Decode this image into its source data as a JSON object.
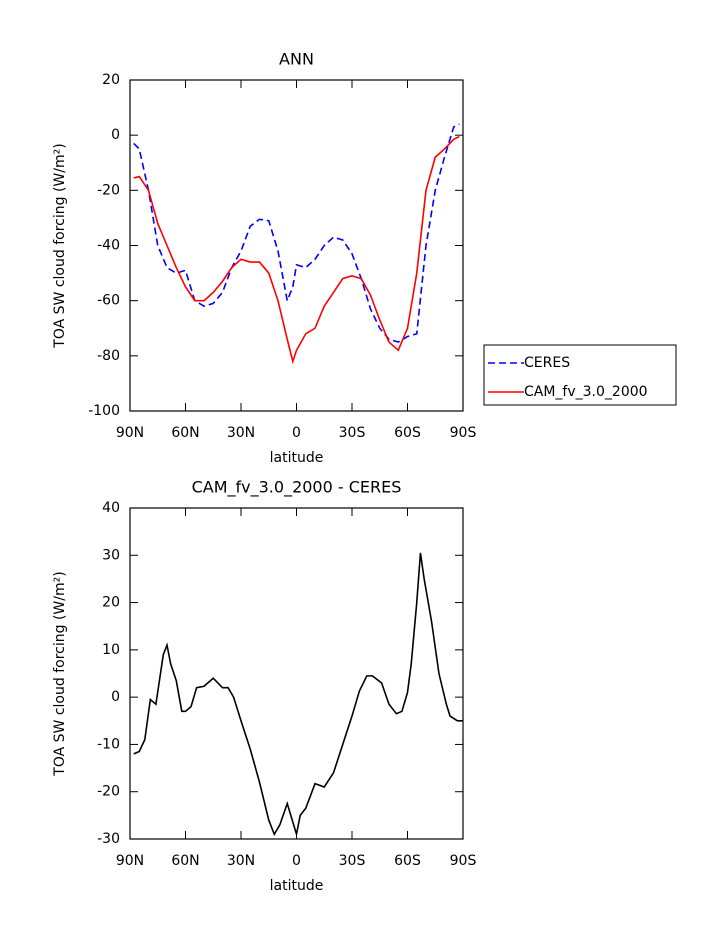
{
  "chart_data": [
    {
      "type": "line",
      "title": "ANN",
      "xlabel": "latitude",
      "ylabel": "TOA SW cloud forcing (W/m²)",
      "x": [
        88,
        85,
        80,
        75,
        70,
        65,
        60,
        55,
        50,
        45,
        40,
        35,
        30,
        25,
        20,
        15,
        10,
        5,
        2,
        0,
        -5,
        -10,
        -15,
        -20,
        -25,
        -30,
        -35,
        -40,
        -45,
        -50,
        -55,
        -60,
        -65,
        -70,
        -75,
        -80,
        -85,
        -88
      ],
      "series": [
        {
          "name": "CERES",
          "color": "#0000ff",
          "dashed": true,
          "values": [
            -3,
            -5,
            -20,
            -40,
            -48,
            -50,
            -49,
            -60,
            -62,
            -61,
            -57,
            -48,
            -42,
            -33,
            -30.5,
            -31,
            -42,
            -60,
            -55,
            -47,
            -48,
            -45,
            -40,
            -37,
            -38,
            -43,
            -52,
            -63,
            -70,
            -74,
            -75,
            -73,
            -72,
            -40,
            -20,
            -8,
            3,
            4
          ]
        },
        {
          "name": "CAM_fv_3.0_2000",
          "color": "#ff0000",
          "dashed": false,
          "values": [
            -15.5,
            -15,
            -20,
            -32,
            -40,
            -48,
            -55,
            -60,
            -60,
            -57,
            -53,
            -48,
            -45,
            -46,
            -46,
            -50,
            -60,
            -74,
            -82,
            -78,
            -72,
            -70,
            -62,
            -57,
            -52,
            -51,
            -52,
            -58,
            -67,
            -75,
            -78,
            -70,
            -50,
            -20,
            -8,
            -5,
            -1.5,
            -0.5
          ]
        }
      ],
      "xlim": [
        90,
        -90
      ],
      "xticks": [
        {
          "value": 90,
          "label": "90N"
        },
        {
          "value": 60,
          "label": "60N"
        },
        {
          "value": 30,
          "label": "30N"
        },
        0,
        {
          "value": -30,
          "label": "30S"
        },
        {
          "value": -60,
          "label": "60S"
        },
        {
          "value": -90,
          "label": "90S"
        }
      ],
      "ylim": [
        -100,
        20
      ],
      "yticks": [
        -100,
        -80,
        -60,
        -40,
        -20,
        0,
        20
      ],
      "legend": "right"
    },
    {
      "type": "line",
      "title": "CAM_fv_3.0_2000 - CERES",
      "xlabel": "latitude",
      "ylabel": "TOA SW cloud forcing (W/m²)",
      "x": [
        88,
        85,
        82,
        79,
        76,
        72,
        70,
        68,
        65,
        62,
        60,
        57,
        54,
        50,
        45,
        40,
        37,
        34,
        30,
        25,
        20,
        15,
        12,
        9,
        5,
        0,
        -2,
        -5,
        -10,
        -15,
        -20,
        -25,
        -30,
        -34,
        -38,
        -41,
        -46,
        -50,
        -54,
        -57,
        -60,
        -62,
        -65,
        -67,
        -69,
        -73,
        -77,
        -81,
        -83,
        -87,
        -90
      ],
      "series": [
        {
          "color": "#000000",
          "dashed": false,
          "values": [
            -12,
            -11.5,
            -9,
            -0.5,
            -1.5,
            9,
            11,
            7,
            3.5,
            -3,
            -3,
            -2,
            2,
            2.3,
            4,
            2,
            2,
            0,
            -5,
            -11,
            -18,
            -26,
            -29,
            -27,
            -22.5,
            -29,
            -25,
            -23.5,
            -18.3,
            -19,
            -16,
            -10,
            -4,
            1.3,
            4.5,
            4.5,
            3,
            -1.5,
            -3.5,
            -3,
            1,
            7,
            20,
            30.5,
            25,
            16,
            5,
            -1.5,
            -4,
            -5,
            -5
          ]
        }
      ],
      "xlim": [
        90,
        -90
      ],
      "xticks": [
        {
          "value": 90,
          "label": "90N"
        },
        {
          "value": 60,
          "label": "60N"
        },
        {
          "value": 30,
          "label": "30N"
        },
        0,
        {
          "value": -30,
          "label": "30S"
        },
        {
          "value": -60,
          "label": "60S"
        },
        {
          "value": -90,
          "label": "90S"
        }
      ],
      "ylim": [
        -30,
        40
      ],
      "yticks": [
        -30,
        -20,
        -10,
        0,
        10,
        20,
        30,
        40
      ]
    }
  ]
}
